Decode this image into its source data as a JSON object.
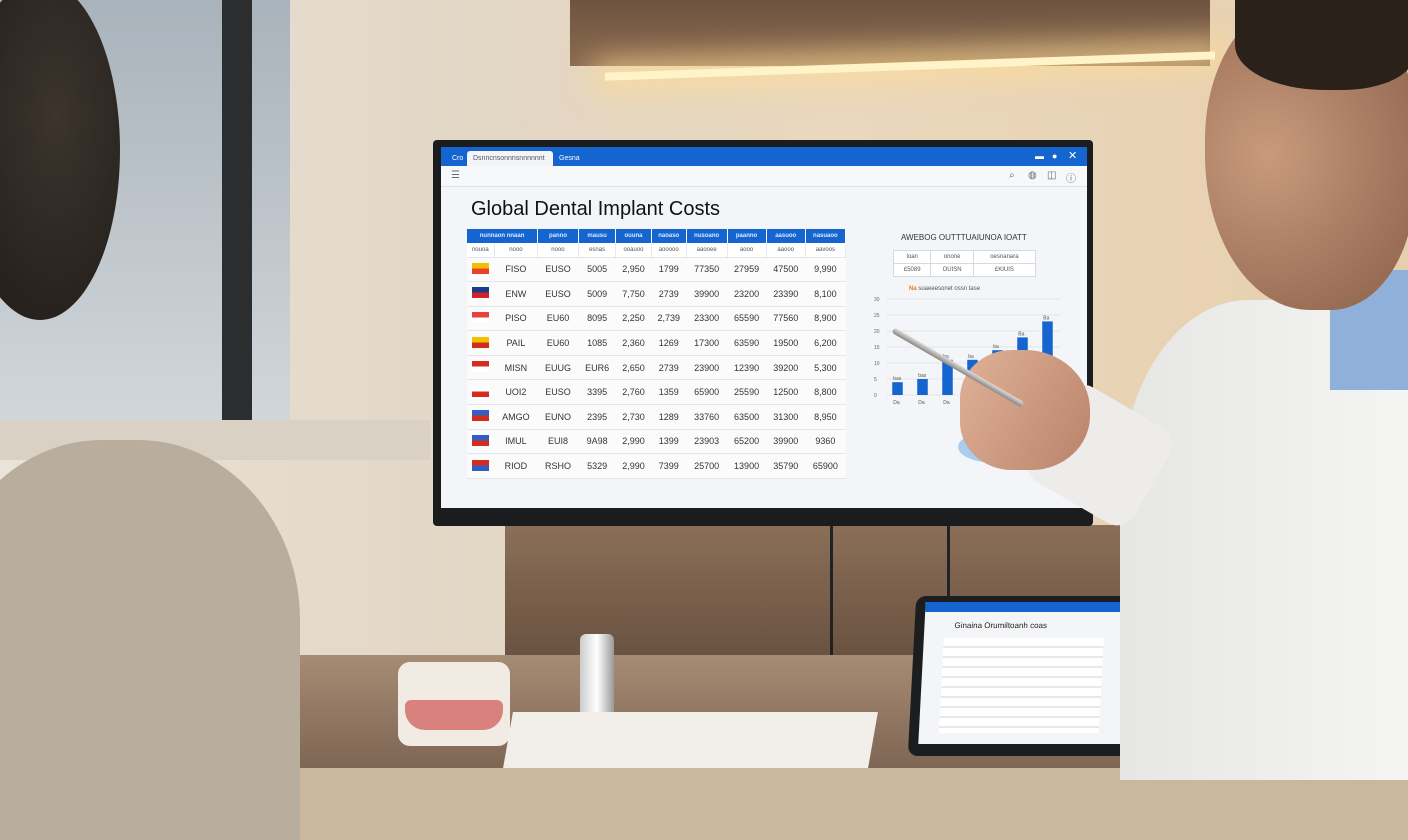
{
  "window": {
    "tabs": [
      "Cro",
      "Dsnncnsonnnsnnnnnnt",
      "Gesna"
    ],
    "controls": [
      "minimize-icon",
      "settings-icon",
      "close-icon"
    ]
  },
  "toolbar": {
    "icons": [
      "menu-icon",
      "search-icon",
      "user-icon",
      "share-icon",
      "info-icon"
    ]
  },
  "page_title": "Global Dental Implant Costs",
  "table": {
    "headers": [
      "nunnaon nnaan",
      "panno",
      "mausu",
      "ouuna",
      "naoaso",
      "nusoano",
      "paanno",
      "aasuoo",
      "nasuaoo"
    ],
    "subheaders": [
      "nouoa",
      "nooo",
      "nooo",
      "esnas",
      "ooauoo",
      "aooooo",
      "aaooee",
      "aooo",
      "aaooo",
      "aavoos"
    ],
    "rows": [
      {
        "flag": [
          "#f2c200",
          "#e8412c"
        ],
        "cells": [
          "FISO",
          "EUSO",
          "5005",
          "2,950",
          "1799",
          "77350",
          "27959",
          "47500",
          "9,990"
        ]
      },
      {
        "flag": [
          "#1b3b8c",
          "#d2232a"
        ],
        "cells": [
          "ENW",
          "EUSO",
          "5009",
          "7,750",
          "2739",
          "39900",
          "23200",
          "23390",
          "8,100"
        ]
      },
      {
        "flag": [
          "#e8413b",
          "#ffffff"
        ],
        "cells": [
          "PISO",
          "EU60",
          "8095",
          "2,250",
          "2,739",
          "23300",
          "65590",
          "77560",
          "8,900"
        ]
      },
      {
        "flag": [
          "#f2c200",
          "#d62b1f"
        ],
        "cells": [
          "PAIL",
          "EU60",
          "1085",
          "2,360",
          "1269",
          "17300",
          "63590",
          "19500",
          "6,200"
        ]
      },
      {
        "flag": [
          "#d62b1f",
          "#ffffff"
        ],
        "cells": [
          "MISN",
          "EUUG",
          "EUR6",
          "2,650",
          "2739",
          "23900",
          "12390",
          "39200",
          "5,300"
        ]
      },
      {
        "flag": [
          "#ffffff",
          "#d62b1f"
        ],
        "cells": [
          "UOI2",
          "EUSO",
          "3395",
          "2,760",
          "1359",
          "65900",
          "25590",
          "12500",
          "8,800"
        ]
      },
      {
        "flag": [
          "#2f5fc4",
          "#d62b1f"
        ],
        "cells": [
          "AMGO",
          "EUNO",
          "2395",
          "2,730",
          "1289",
          "33760",
          "63500",
          "31300",
          "8,950"
        ]
      },
      {
        "flag": [
          "#2f5fc4",
          "#d62b1f"
        ],
        "cells": [
          "IMUL",
          "EUI8",
          "9A98",
          "2,990",
          "1399",
          "23903",
          "65200",
          "39900",
          "9360"
        ]
      },
      {
        "flag": [
          "#d62b1f",
          "#2f5fc4"
        ],
        "cells": [
          "RIOD",
          "RSHO",
          "5329",
          "2,990",
          "7399",
          "25700",
          "13900",
          "35790",
          "65900"
        ]
      }
    ]
  },
  "summary": {
    "title": "AWEBOG OUTTTUAIUNOA IOATT",
    "cells": [
      [
        "loan",
        "onone",
        "oesnanara"
      ],
      [
        "£5089",
        "OUISN",
        "£KIUIS"
      ]
    ],
    "legend_marker": "Na",
    "legend_text": "suaeeesonet ossn tase"
  },
  "chart_data": {
    "type": "bar",
    "categories": [
      "Da",
      "Da",
      "Da",
      "Da",
      "Da",
      "Da",
      "Da"
    ],
    "values": [
      4,
      5,
      11,
      11,
      14,
      18,
      23
    ],
    "bar_labels": [
      "bas",
      "bas",
      "ba",
      "ba",
      "ba",
      "Ba",
      "Ba"
    ],
    "yticks": [
      0,
      5,
      10,
      15,
      20,
      25,
      30
    ],
    "ylim": [
      0,
      30
    ],
    "grid": true,
    "bar_color": "#1565d0"
  },
  "tablet": {
    "title": "Ginaina Orumiltoanh coas"
  },
  "colors": {
    "accent": "#1565d0"
  }
}
